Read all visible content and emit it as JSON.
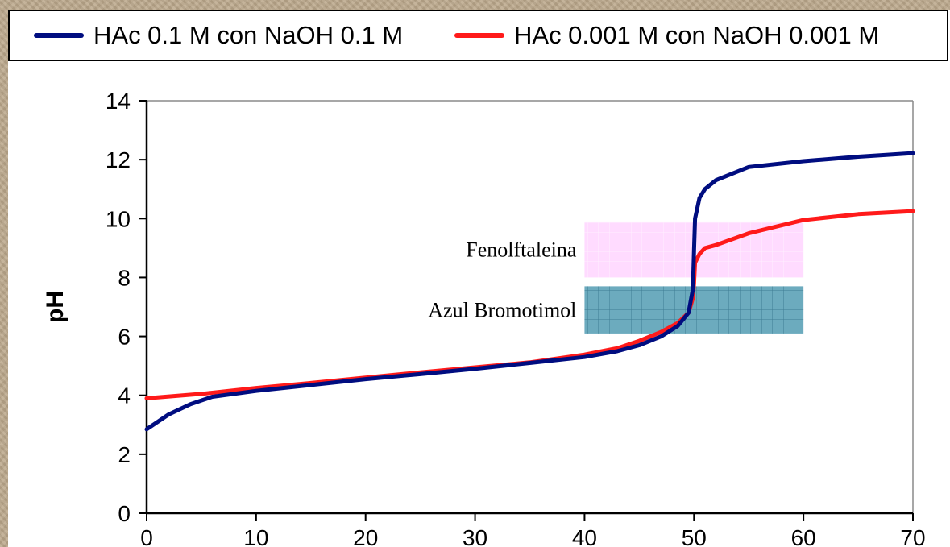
{
  "colors": {
    "series_dark_blue": "#000d80",
    "series_red": "#ff1a1a",
    "fenolftaleina_band": "#ff99ff",
    "azul_band": "#3b8fa8"
  },
  "chart_data": {
    "type": "line",
    "xlabel": "",
    "ylabel": "pH",
    "xlim": [
      0,
      70
    ],
    "ylim": [
      0,
      14
    ],
    "y_ticks": [
      "0",
      "2",
      "4",
      "6",
      "8",
      "10",
      "12",
      "14"
    ],
    "x_ticks": [
      "0",
      "10",
      "20",
      "30",
      "40",
      "50",
      "60",
      "70"
    ],
    "grid": false,
    "legend": {
      "position": "top"
    },
    "series": [
      {
        "name": "HAc 0.1 M con NaOH 0.1 M",
        "color": "#000d80",
        "x": [
          0,
          2,
          4,
          6,
          10,
          15,
          20,
          25,
          30,
          35,
          40,
          43,
          45,
          47,
          48.5,
          49.5,
          49.9,
          50,
          50.1,
          50.5,
          51,
          52,
          55,
          60,
          65,
          70
        ],
        "y": [
          2.85,
          3.35,
          3.7,
          3.95,
          4.15,
          4.35,
          4.55,
          4.72,
          4.9,
          5.1,
          5.3,
          5.5,
          5.7,
          6.0,
          6.35,
          6.8,
          7.6,
          8.9,
          10.0,
          10.7,
          11.0,
          11.3,
          11.75,
          11.95,
          12.1,
          12.22
        ]
      },
      {
        "name": "HAc 0.001 M con NaOH 0.001 M",
        "color": "#ff1a1a",
        "x": [
          0,
          5,
          10,
          15,
          20,
          25,
          30,
          35,
          40,
          43,
          45,
          47,
          48.5,
          49.5,
          49.9,
          50,
          50.1,
          50.5,
          51,
          52,
          55,
          60,
          65,
          70
        ],
        "y": [
          3.9,
          4.05,
          4.25,
          4.42,
          4.6,
          4.78,
          4.95,
          5.12,
          5.38,
          5.6,
          5.85,
          6.15,
          6.45,
          6.8,
          7.3,
          7.8,
          8.5,
          8.8,
          9.0,
          9.1,
          9.5,
          9.95,
          10.15,
          10.25
        ]
      }
    ],
    "annotations": [
      {
        "label": "Fenolftaleina",
        "x_range": [
          40,
          60
        ],
        "y_range": [
          8,
          9.9
        ],
        "color": "#ff99ff"
      },
      {
        "label": "Azul Bromotimol",
        "x_range": [
          40,
          60
        ],
        "y_range": [
          6.1,
          7.7
        ],
        "color": "#3b8fa8"
      }
    ]
  }
}
